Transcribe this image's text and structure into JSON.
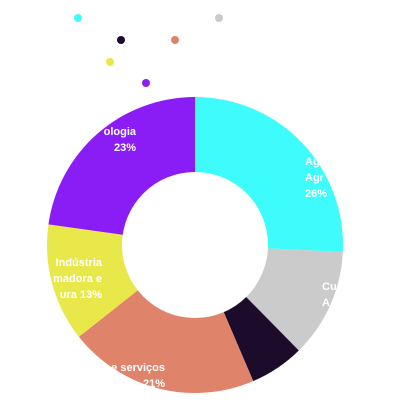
{
  "chart_data": {
    "type": "pie",
    "donut": true,
    "legend_position": "top-left",
    "legend_text_visible": false,
    "slices": [
      {
        "label_lines": [
          "Ag",
          "Agr",
          "26%"
        ],
        "value": 26,
        "color": "#3ffcfc"
      },
      {
        "label_lines": [
          "Cu",
          "A"
        ],
        "value": 12,
        "color": "#cbcbcb"
      },
      {
        "label_lines": [],
        "value": 6,
        "color": "#1c0b2b"
      },
      {
        "label_lines": [
          "e serviços",
          "21%"
        ],
        "value": 21,
        "color": "#e0836b"
      },
      {
        "label_lines": [
          "Indústria",
          "madora e",
          "ura 13%"
        ],
        "value": 13,
        "color": "#e8e84a"
      },
      {
        "label_lines": [
          "ologia",
          "23%"
        ],
        "value": 23,
        "color": "#8a1cf5"
      }
    ]
  }
}
